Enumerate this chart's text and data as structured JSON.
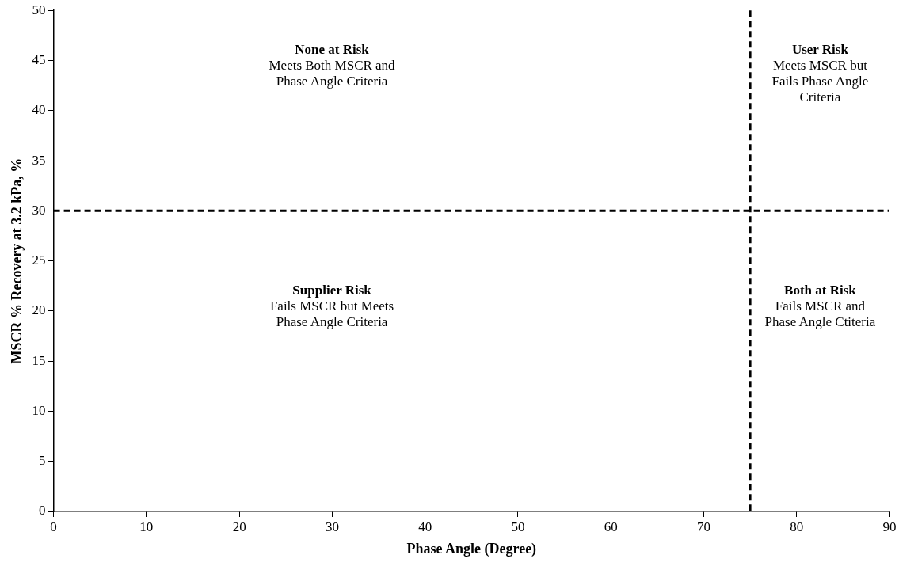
{
  "chart_data": {
    "type": "scatter",
    "xlabel": "Phase Angle (Degree)",
    "ylabel": "MSCR % Recovery at 3.2 kPa, %",
    "xlim": [
      0,
      90
    ],
    "xticks": [
      0,
      10,
      20,
      30,
      40,
      50,
      60,
      70,
      80,
      90
    ],
    "ylim": [
      0,
      50
    ],
    "yticks": [
      0,
      5,
      10,
      15,
      20,
      25,
      30,
      35,
      40,
      45,
      50
    ],
    "grid": false,
    "legend": false,
    "ref_lines": [
      {
        "axis": "x",
        "value": 75,
        "color": "#000000",
        "line_style": "dashed"
      },
      {
        "axis": "y",
        "value": 30,
        "color": "#000000",
        "line_style": "dashed"
      }
    ],
    "annotations": [
      "None at Risk\nMeets Both MSCR and\nPhase Angle Criteria",
      "User Risk\nMeets MSCR but\nFails Phase Angle\nCriteria",
      "Supplier Risk\nFails MSCR but Meets\nPhase Angle Criteria",
      "Both at Risk\nFails MSCR and\nPhase Angle Ctiteria"
    ]
  }
}
